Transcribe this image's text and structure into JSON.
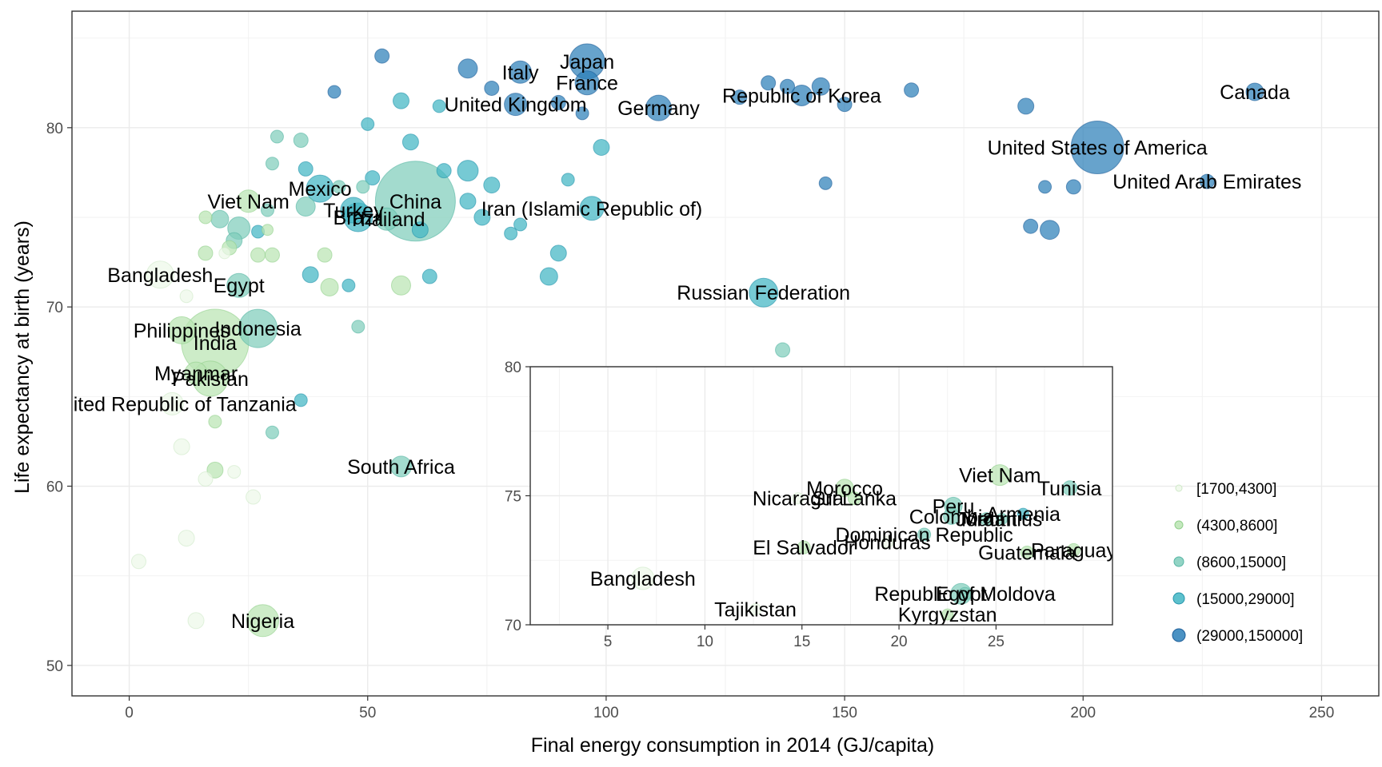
{
  "chart_data": [
    {
      "type": "scatter",
      "xlabel": "Final energy consumption in 2014 (GJ/capita)",
      "ylabel": "Life expectancy at birth (years)",
      "xlim": [
        -12,
        262
      ],
      "ylim": [
        48.3,
        86.5
      ],
      "x_ticks": [
        0,
        50,
        100,
        150,
        200,
        250
      ],
      "x_tick_labels": [
        "0",
        "50",
        "100",
        "150",
        "200",
        "250"
      ],
      "y_ticks": [
        50,
        60,
        70,
        80
      ],
      "y_tick_labels": [
        "50",
        "60",
        "70",
        "80"
      ],
      "grid": true,
      "size_encodes": "population (legend not shown)",
      "color_legend": {
        "placement": "right",
        "items": [
          {
            "label": "[1700,4300]",
            "color": "#edf8e9"
          },
          {
            "label": "(4300,8600]",
            "color": "#bae4b3"
          },
          {
            "label": "(8600,15000]",
            "color": "#7fcdbb"
          },
          {
            "label": "(15000,29000]",
            "color": "#41b6c4"
          },
          {
            "label": "(29000,150000]",
            "color": "#2c7fb8"
          }
        ]
      },
      "points": [
        {
          "label": "Japan",
          "x": 96,
          "y": 83.7,
          "g": 5,
          "s": 22
        },
        {
          "label": "Italy",
          "x": 82,
          "y": 83.1,
          "g": 5,
          "s": 14
        },
        {
          "label": "France",
          "x": 96,
          "y": 82.5,
          "g": 5,
          "s": 15
        },
        {
          "label": "United Kingdom",
          "x": 81,
          "y": 81.3,
          "g": 5,
          "s": 14
        },
        {
          "label": "Germany",
          "x": 111,
          "y": 81.1,
          "g": 5,
          "s": 16
        },
        {
          "label": "Republic of Korea",
          "x": 141,
          "y": 81.8,
          "g": 5,
          "s": 13
        },
        {
          "label": "Canada",
          "x": 236,
          "y": 82.0,
          "g": 5,
          "s": 11
        },
        {
          "label": "United States of America",
          "x": 203,
          "y": 78.9,
          "g": 5,
          "s": 33
        },
        {
          "label": "United Arab Emirates",
          "x": 226,
          "y": 77.0,
          "g": 5,
          "s": 9
        },
        {
          "label": "Iran (Islamic Republic of)",
          "x": 97,
          "y": 75.5,
          "g": 4,
          "s": 15
        },
        {
          "label": "China",
          "x": 60,
          "y": 75.9,
          "g": 3,
          "s": 50
        },
        {
          "label": "Mexico",
          "x": 40,
          "y": 76.6,
          "g": 4,
          "s": 17
        },
        {
          "label": "Turkey",
          "x": 47,
          "y": 75.4,
          "g": 4,
          "s": 16
        },
        {
          "label": "Brazil",
          "x": 48,
          "y": 75.0,
          "g": 4,
          "s": 18
        },
        {
          "label": "Thailand",
          "x": 54,
          "y": 74.9,
          "g": 3,
          "s": 14
        },
        {
          "label": "Viet Nam",
          "x": 25,
          "y": 75.9,
          "g": 2,
          "s": 14
        },
        {
          "label": "Russian Federation",
          "x": 133,
          "y": 70.8,
          "g": 4,
          "s": 18
        },
        {
          "label": "Bangladesh",
          "x": 6.5,
          "y": 71.8,
          "g": 1,
          "s": 17
        },
        {
          "label": "Egypt",
          "x": 23,
          "y": 71.2,
          "g": 3,
          "s": 15
        },
        {
          "label": "Philippines",
          "x": 11,
          "y": 68.7,
          "g": 2,
          "s": 17
        },
        {
          "label": "Indonesia",
          "x": 27,
          "y": 68.8,
          "g": 3,
          "s": 24
        },
        {
          "label": "India",
          "x": 18,
          "y": 68.0,
          "g": 2,
          "s": 42
        },
        {
          "label": "Myanmar",
          "x": 14,
          "y": 66.3,
          "g": 2,
          "s": 14
        },
        {
          "label": "Pakistan",
          "x": 17,
          "y": 66.0,
          "g": 2,
          "s": 22
        },
        {
          "label": "United Republic of Tanzania",
          "x": 9,
          "y": 64.6,
          "g": 1,
          "s": 14
        },
        {
          "label": "South Africa",
          "x": 57,
          "y": 61.1,
          "g": 3,
          "s": 13
        },
        {
          "label": "Nigeria",
          "x": 28,
          "y": 52.5,
          "g": 2,
          "s": 20
        },
        {
          "label": "",
          "x": 53,
          "y": 84.0,
          "g": 5,
          "s": 9
        },
        {
          "label": "",
          "x": 71,
          "y": 83.3,
          "g": 5,
          "s": 12
        },
        {
          "label": "",
          "x": 76,
          "y": 82.2,
          "g": 5,
          "s": 9
        },
        {
          "label": "",
          "x": 43,
          "y": 82.0,
          "g": 5,
          "s": 8
        },
        {
          "label": "",
          "x": 57,
          "y": 81.5,
          "g": 4,
          "s": 10
        },
        {
          "label": "",
          "x": 65,
          "y": 81.2,
          "g": 4,
          "s": 8
        },
        {
          "label": "",
          "x": 90,
          "y": 81.4,
          "g": 5,
          "s": 9
        },
        {
          "label": "",
          "x": 95,
          "y": 80.8,
          "g": 5,
          "s": 8
        },
        {
          "label": "",
          "x": 128,
          "y": 81.7,
          "g": 5,
          "s": 9
        },
        {
          "label": "",
          "x": 134,
          "y": 82.5,
          "g": 5,
          "s": 9
        },
        {
          "label": "",
          "x": 138,
          "y": 82.3,
          "g": 5,
          "s": 9
        },
        {
          "label": "",
          "x": 145,
          "y": 82.3,
          "g": 5,
          "s": 11
        },
        {
          "label": "",
          "x": 150,
          "y": 81.3,
          "g": 5,
          "s": 9
        },
        {
          "label": "",
          "x": 164,
          "y": 82.1,
          "g": 5,
          "s": 9
        },
        {
          "label": "",
          "x": 188,
          "y": 81.2,
          "g": 5,
          "s": 10
        },
        {
          "label": "",
          "x": 146,
          "y": 76.9,
          "g": 5,
          "s": 8
        },
        {
          "label": "",
          "x": 192,
          "y": 76.7,
          "g": 5,
          "s": 8
        },
        {
          "label": "",
          "x": 198,
          "y": 76.7,
          "g": 5,
          "s": 9
        },
        {
          "label": "",
          "x": 189,
          "y": 74.5,
          "g": 5,
          "s": 9
        },
        {
          "label": "",
          "x": 193,
          "y": 74.3,
          "g": 5,
          "s": 12
        },
        {
          "label": "",
          "x": 50,
          "y": 80.2,
          "g": 4,
          "s": 8
        },
        {
          "label": "",
          "x": 59,
          "y": 79.2,
          "g": 4,
          "s": 10
        },
        {
          "label": "",
          "x": 31,
          "y": 79.5,
          "g": 3,
          "s": 8
        },
        {
          "label": "",
          "x": 36,
          "y": 79.3,
          "g": 3,
          "s": 9
        },
        {
          "label": "",
          "x": 99,
          "y": 78.9,
          "g": 4,
          "s": 10
        },
        {
          "label": "",
          "x": 30,
          "y": 78.0,
          "g": 3,
          "s": 8
        },
        {
          "label": "",
          "x": 37,
          "y": 77.7,
          "g": 4,
          "s": 9
        },
        {
          "label": "",
          "x": 66,
          "y": 77.6,
          "g": 4,
          "s": 9
        },
        {
          "label": "",
          "x": 71,
          "y": 77.6,
          "g": 4,
          "s": 13
        },
        {
          "label": "",
          "x": 51,
          "y": 77.2,
          "g": 4,
          "s": 9
        },
        {
          "label": "",
          "x": 49,
          "y": 76.7,
          "g": 3,
          "s": 8
        },
        {
          "label": "",
          "x": 44,
          "y": 76.7,
          "g": 3,
          "s": 8
        },
        {
          "label": "",
          "x": 76,
          "y": 76.8,
          "g": 4,
          "s": 10
        },
        {
          "label": "",
          "x": 92,
          "y": 77.1,
          "g": 4,
          "s": 8
        },
        {
          "label": "",
          "x": 71,
          "y": 75.9,
          "g": 4,
          "s": 10
        },
        {
          "label": "",
          "x": 37,
          "y": 75.6,
          "g": 3,
          "s": 12
        },
        {
          "label": "",
          "x": 29,
          "y": 75.4,
          "g": 3,
          "s": 8
        },
        {
          "label": "",
          "x": 19,
          "y": 74.9,
          "g": 3,
          "s": 11
        },
        {
          "label": "",
          "x": 16,
          "y": 75.0,
          "g": 2,
          "s": 8
        },
        {
          "label": "",
          "x": 74,
          "y": 75.0,
          "g": 4,
          "s": 10
        },
        {
          "label": "",
          "x": 23,
          "y": 74.4,
          "g": 3,
          "s": 14
        },
        {
          "label": "",
          "x": 27,
          "y": 74.2,
          "g": 4,
          "s": 8
        },
        {
          "label": "",
          "x": 61,
          "y": 74.3,
          "g": 4,
          "s": 10
        },
        {
          "label": "",
          "x": 82,
          "y": 74.6,
          "g": 4,
          "s": 8
        },
        {
          "label": "",
          "x": 80,
          "y": 74.1,
          "g": 4,
          "s": 8
        },
        {
          "label": "",
          "x": 29,
          "y": 74.3,
          "g": 2,
          "s": 7
        },
        {
          "label": "",
          "x": 22,
          "y": 73.7,
          "g": 3,
          "s": 10
        },
        {
          "label": "",
          "x": 21,
          "y": 73.3,
          "g": 2,
          "s": 9
        },
        {
          "label": "",
          "x": 20,
          "y": 73.0,
          "g": 1,
          "s": 7
        },
        {
          "label": "",
          "x": 16,
          "y": 73.0,
          "g": 2,
          "s": 9
        },
        {
          "label": "",
          "x": 27,
          "y": 72.9,
          "g": 2,
          "s": 9
        },
        {
          "label": "",
          "x": 30,
          "y": 72.9,
          "g": 2,
          "s": 9
        },
        {
          "label": "",
          "x": 41,
          "y": 72.9,
          "g": 2,
          "s": 9
        },
        {
          "label": "",
          "x": 90,
          "y": 73.0,
          "g": 4,
          "s": 10
        },
        {
          "label": "",
          "x": 38,
          "y": 71.8,
          "g": 4,
          "s": 10
        },
        {
          "label": "",
          "x": 63,
          "y": 71.7,
          "g": 4,
          "s": 9
        },
        {
          "label": "",
          "x": 88,
          "y": 71.7,
          "g": 4,
          "s": 11
        },
        {
          "label": "",
          "x": 57,
          "y": 71.2,
          "g": 2,
          "s": 12
        },
        {
          "label": "",
          "x": 42,
          "y": 71.1,
          "g": 2,
          "s": 11
        },
        {
          "label": "",
          "x": 46,
          "y": 71.2,
          "g": 4,
          "s": 8
        },
        {
          "label": "",
          "x": 12,
          "y": 70.6,
          "g": 1,
          "s": 8
        },
        {
          "label": "",
          "x": 48,
          "y": 68.9,
          "g": 3,
          "s": 8
        },
        {
          "label": "",
          "x": 137,
          "y": 67.6,
          "g": 3,
          "s": 9
        },
        {
          "label": "",
          "x": 36,
          "y": 64.8,
          "g": 4,
          "s": 8
        },
        {
          "label": "",
          "x": 30,
          "y": 63.0,
          "g": 3,
          "s": 8
        },
        {
          "label": "",
          "x": 18,
          "y": 63.6,
          "g": 2,
          "s": 8
        },
        {
          "label": "",
          "x": 11,
          "y": 62.2,
          "g": 1,
          "s": 10
        },
        {
          "label": "",
          "x": 18,
          "y": 60.9,
          "g": 2,
          "s": 10
        },
        {
          "label": "",
          "x": 22,
          "y": 60.8,
          "g": 1,
          "s": 8
        },
        {
          "label": "",
          "x": 16,
          "y": 60.4,
          "g": 1,
          "s": 9
        },
        {
          "label": "",
          "x": 26,
          "y": 59.4,
          "g": 1,
          "s": 9
        },
        {
          "label": "",
          "x": 12,
          "y": 57.1,
          "g": 1,
          "s": 10
        },
        {
          "label": "",
          "x": 2,
          "y": 55.8,
          "g": 1,
          "s": 9
        },
        {
          "label": "",
          "x": 14,
          "y": 52.5,
          "g": 1,
          "s": 10
        }
      ]
    },
    {
      "type": "scatter",
      "xlim": [
        1,
        31
      ],
      "ylim": [
        70,
        80
      ],
      "x_ticks": [
        5,
        10,
        15,
        20,
        25
      ],
      "x_tick_labels": [
        "5",
        "10",
        "15",
        "20",
        "25"
      ],
      "y_ticks": [
        70,
        75,
        80
      ],
      "y_tick_labels": [
        "70",
        "75",
        "80"
      ],
      "grid": true,
      "points": [
        {
          "label": "Viet Nam",
          "x": 25.2,
          "y": 75.8,
          "g": 2,
          "s": 13
        },
        {
          "label": "Tunisia",
          "x": 28.8,
          "y": 75.3,
          "g": 3,
          "s": 9
        },
        {
          "label": "Morocco",
          "x": 17.2,
          "y": 75.3,
          "g": 2,
          "s": 11
        },
        {
          "label": "Sri Lanka",
          "x": 17.7,
          "y": 74.9,
          "g": 2,
          "s": 8
        },
        {
          "label": "Nicaragua",
          "x": 14.8,
          "y": 74.9,
          "g": 1,
          "s": 7
        },
        {
          "label": "Peru",
          "x": 22.8,
          "y": 74.6,
          "g": 3,
          "s": 11
        },
        {
          "label": "Colombia",
          "x": 22.7,
          "y": 74.2,
          "g": 3,
          "s": 10
        },
        {
          "label": "Jordan",
          "x": 24.5,
          "y": 74.1,
          "g": 3,
          "s": 8
        },
        {
          "label": "Mauritius",
          "x": 25.3,
          "y": 74.1,
          "g": 3,
          "s": 7
        },
        {
          "label": "Armenia",
          "x": 26.4,
          "y": 74.3,
          "g": 4,
          "s": 7
        },
        {
          "label": "Dominican Republic",
          "x": 21.3,
          "y": 73.5,
          "g": 3,
          "s": 8
        },
        {
          "label": "Honduras",
          "x": 19.4,
          "y": 73.2,
          "g": 1,
          "s": 7
        },
        {
          "label": "El Salvador",
          "x": 15.1,
          "y": 73.0,
          "g": 2,
          "s": 8
        },
        {
          "label": "Guatemala",
          "x": 26.6,
          "y": 72.8,
          "g": 2,
          "s": 8
        },
        {
          "label": "Paraguay",
          "x": 29.0,
          "y": 72.9,
          "g": 2,
          "s": 8
        },
        {
          "label": "Bangladesh",
          "x": 6.8,
          "y": 71.8,
          "g": 1,
          "s": 14
        },
        {
          "label": "Republic of Moldova",
          "x": 23.4,
          "y": 71.2,
          "g": 3,
          "s": 8
        },
        {
          "label": "Egypt",
          "x": 23.2,
          "y": 71.2,
          "g": 3,
          "s": 13
        },
        {
          "label": "Tajikistan",
          "x": 12.6,
          "y": 70.6,
          "g": 1,
          "s": 7
        },
        {
          "label": "Kyrgyzstan",
          "x": 22.5,
          "y": 70.4,
          "g": 2,
          "s": 7
        }
      ]
    }
  ]
}
